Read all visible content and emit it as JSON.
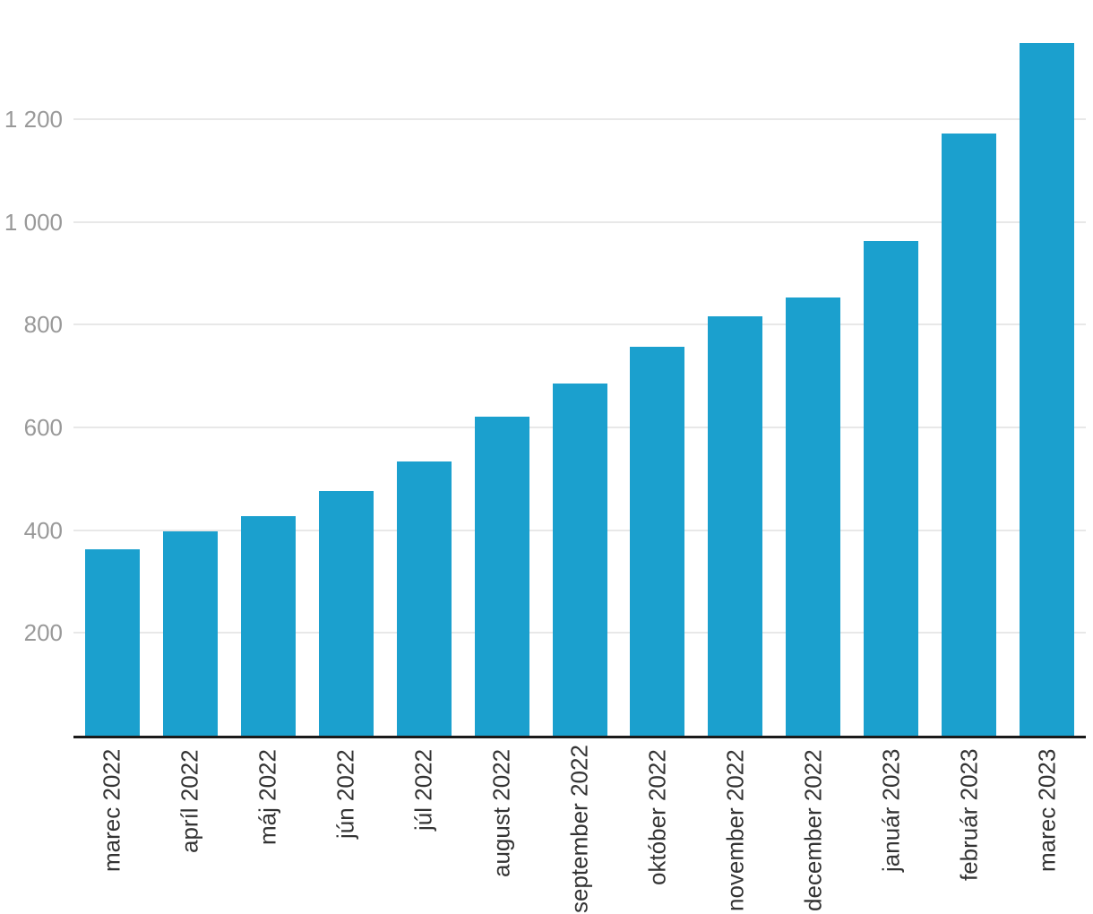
{
  "chart_data": {
    "type": "bar",
    "title": "",
    "xlabel": "",
    "ylabel": "",
    "categories": [
      "marec 2022",
      "apríl 2022",
      "máj 2022",
      "jún 2022",
      "júl 2022",
      "august 2022",
      "september 2022",
      "október 2022",
      "november 2022",
      "december 2022",
      "január 2023",
      "február 2023",
      "marec 2023"
    ],
    "values": [
      363,
      397,
      428,
      476,
      534,
      621,
      685,
      757,
      816,
      853,
      963,
      1172,
      1349
    ],
    "ylim": [
      0,
      1432
    ],
    "yticks": [
      {
        "value": 200,
        "label": "200"
      },
      {
        "value": 400,
        "label": "400"
      },
      {
        "value": 600,
        "label": "600"
      },
      {
        "value": 800,
        "label": "800"
      },
      {
        "value": 1000,
        "label": "1 000"
      },
      {
        "value": 1200,
        "label": "1 200"
      }
    ],
    "grid": true,
    "legend": "none",
    "colors": {
      "bar": "#1BA0CE",
      "gridline": "#e8e8e8",
      "axis_line": "#1a1a1a",
      "y_tick_label": "#999999",
      "x_tick_label": "#333333",
      "background": "#ffffff"
    }
  }
}
